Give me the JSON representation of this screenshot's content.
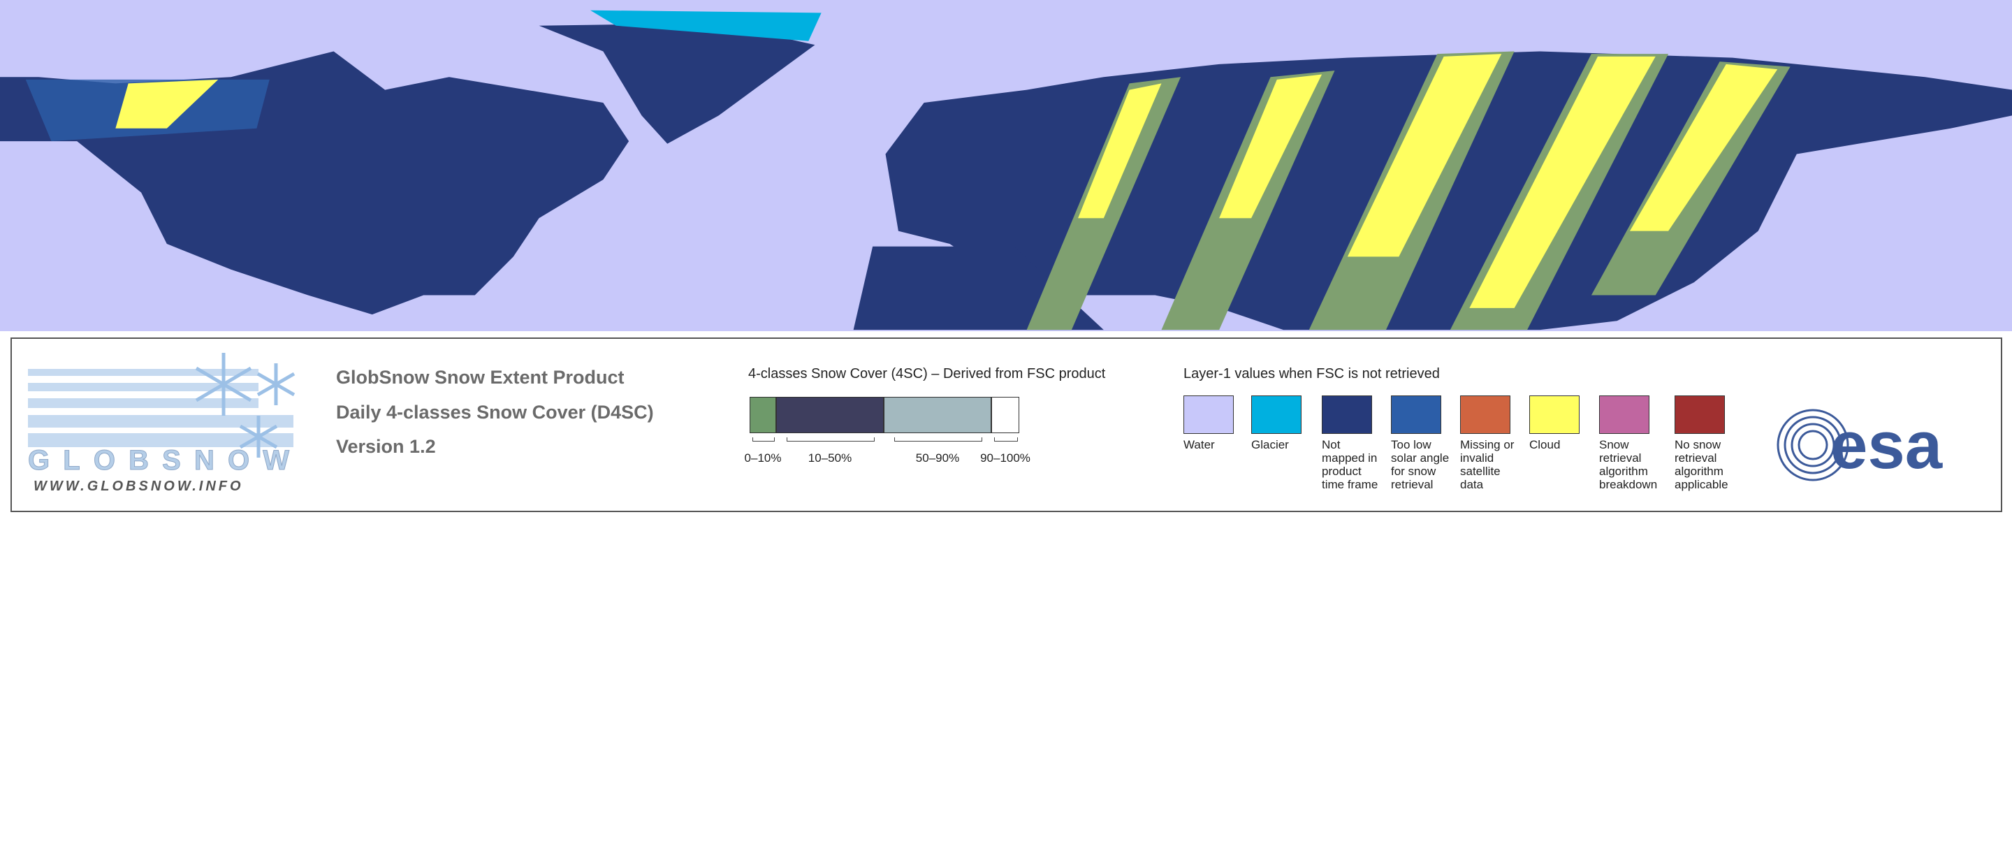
{
  "logo": {
    "name": "GLOBSNOW",
    "url": "WWW.GLOBSNOW.INFO"
  },
  "product": {
    "lines": [
      "GlobSnow Snow Extent Product",
      "Daily 4-classes Snow Cover (D4SC)",
      "Version 1.2"
    ]
  },
  "scale": {
    "title": "4-classes Snow Cover (4SC) – Derived from FSC product",
    "classes": [
      {
        "label": "0–10%",
        "color": "#6e9a6a"
      },
      {
        "label": "10–50%",
        "color": "#3e3e5e"
      },
      {
        "label": "50–90%",
        "color": "#a3b9bf"
      },
      {
        "label": "90–100%",
        "color": "#ffffff"
      }
    ]
  },
  "layer1": {
    "title": "Layer-1 values when FSC is not retrieved",
    "items": [
      {
        "label": "Water",
        "color": "#c8c8fa"
      },
      {
        "label": "Glacier",
        "color": "#00b0e0"
      },
      {
        "label": "Not mapped in product time frame",
        "color": "#263a7a"
      },
      {
        "label": "Too low solar angle for snow retrieval",
        "color": "#2c5ea8"
      },
      {
        "label": "Missing or invalid satellite data",
        "color": "#d06440"
      },
      {
        "label": "Cloud",
        "color": "#ffff60"
      },
      {
        "label": "Snow retrieval algorithm breakdown",
        "color": "#c066a0"
      },
      {
        "label": "No snow retrieval algorithm applicable",
        "color": "#a03030"
      }
    ]
  },
  "agency": "esa"
}
